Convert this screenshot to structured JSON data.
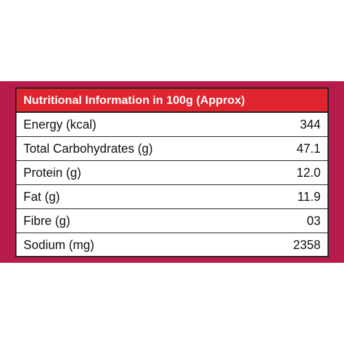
{
  "table": {
    "title": "Nutritional Information in 100g (Approx)",
    "rows": [
      [
        "Energy (kcal)",
        "344"
      ],
      [
        "Total Carbohydrates (g)",
        "47.1"
      ],
      [
        "Protein (g)",
        "12.0"
      ],
      [
        "Fat (g)",
        "11.9"
      ],
      [
        "Fibre (g)",
        "03"
      ],
      [
        "Sodium (mg)",
        "2358"
      ]
    ]
  }
}
